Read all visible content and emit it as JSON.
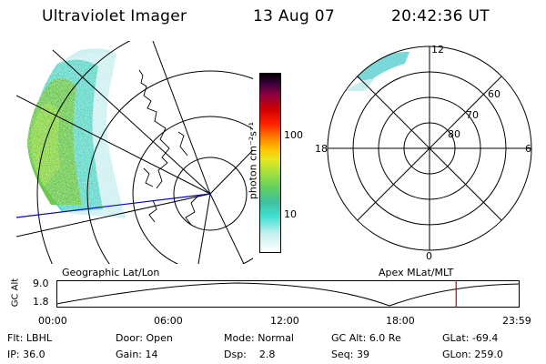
{
  "header": {
    "instrument": "Ultraviolet Imager",
    "date": "13 Aug 07",
    "time": "20:42:36 UT"
  },
  "colorbar": {
    "unit_label": "photon cm⁻²s⁻¹",
    "tick_high": "100",
    "tick_low": "10",
    "colors": [
      "#ffffff",
      "#c8f0f0",
      "#40e0d0",
      "#40c0a0",
      "#60d060",
      "#a0e040",
      "#e8e820",
      "#ffc000",
      "#ff8000",
      "#ff2000",
      "#d00000",
      "#900040",
      "#400040",
      "#000000"
    ]
  },
  "left_panel": {
    "label": "Geographic Lat/Lon"
  },
  "right_panel": {
    "label": "Apex MLat/MLT",
    "mlt_labels": {
      "top": "12",
      "right": "6",
      "bottom": "0",
      "left": "18"
    },
    "lat_labels": [
      "60",
      "70",
      "80"
    ]
  },
  "timeline": {
    "ylabel": "GC Alt",
    "y_ticks": [
      "9.0",
      "1.8"
    ],
    "x_ticks": [
      "00:00",
      "06:00",
      "12:00",
      "18:00",
      "23:59"
    ],
    "marker_time_hours": 20.71,
    "marker_color": "#cc0000"
  },
  "status": {
    "col1": [
      {
        "label": "Flt:",
        "value": "LBHL"
      },
      {
        "label": "IP:",
        "value": "36.0"
      }
    ],
    "col2": [
      {
        "label": "Door:",
        "value": "Open"
      },
      {
        "label": "Gain:",
        "value": "14"
      }
    ],
    "col3": [
      {
        "label": "Mode:",
        "value": "Normal"
      },
      {
        "label": "Dsp:",
        "value": "2.8"
      }
    ],
    "col4": [
      {
        "label": "GC Alt:",
        "value": "6.0 Re"
      },
      {
        "label": "Seq:",
        "value": "39"
      }
    ],
    "col5": [
      {
        "label": "GLat:",
        "value": "-69.4"
      },
      {
        "label": "GLon:",
        "value": "259.0"
      }
    ]
  }
}
